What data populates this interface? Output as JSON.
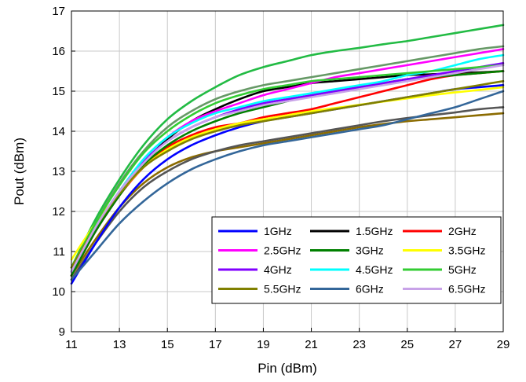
{
  "chart_data": {
    "type": "line",
    "xlabel": "Pin (dBm)",
    "ylabel": "Pout (dBm)",
    "xlim": [
      11,
      29
    ],
    "ylim": [
      9,
      17
    ],
    "xticks": [
      11,
      13,
      15,
      17,
      19,
      21,
      23,
      25,
      27,
      29
    ],
    "yticks": [
      9,
      10,
      11,
      12,
      13,
      14,
      15,
      16,
      17
    ],
    "grid": true,
    "legend_position": "bottom-right",
    "x": [
      11,
      12,
      13,
      14,
      15,
      16,
      17,
      18,
      19,
      20,
      21,
      22,
      23,
      24,
      25,
      26,
      27,
      28,
      29
    ],
    "series": [
      {
        "name": "1GHz",
        "color": "#0000ff",
        "values": [
          10.2,
          11.2,
          12.1,
          12.8,
          13.3,
          13.65,
          13.9,
          14.1,
          14.25,
          14.35,
          14.45,
          14.55,
          14.65,
          14.75,
          14.85,
          14.95,
          15.05,
          15.1,
          15.15
        ]
      },
      {
        "name": "1.5GHz",
        "color": "#000000",
        "values": [
          10.4,
          11.5,
          12.4,
          13.2,
          13.8,
          14.25,
          14.55,
          14.8,
          15.0,
          15.1,
          15.2,
          15.25,
          15.3,
          15.35,
          15.4,
          15.42,
          15.45,
          15.47,
          15.5
        ]
      },
      {
        "name": "2GHz",
        "color": "#ff0000",
        "values": [
          10.4,
          11.5,
          12.4,
          13.1,
          13.6,
          13.9,
          14.1,
          14.2,
          14.35,
          14.45,
          14.55,
          14.7,
          14.85,
          15.0,
          15.15,
          15.3,
          15.4,
          15.45,
          15.5
        ]
      },
      {
        "name": "2.5GHz",
        "color": "#ff00ff",
        "values": [
          10.5,
          11.6,
          12.5,
          13.3,
          13.85,
          14.25,
          14.5,
          14.7,
          14.9,
          15.05,
          15.2,
          15.35,
          15.45,
          15.55,
          15.65,
          15.75,
          15.85,
          15.95,
          16.05
        ]
      },
      {
        "name": "3GHz",
        "color": "#008000",
        "values": [
          10.4,
          11.5,
          12.4,
          13.15,
          13.65,
          14.0,
          14.25,
          14.45,
          14.6,
          14.75,
          14.9,
          15.0,
          15.1,
          15.2,
          15.3,
          15.35,
          15.4,
          15.45,
          15.5
        ]
      },
      {
        "name": "3.5GHz",
        "color": "#ffff00",
        "values": [
          10.8,
          11.7,
          12.45,
          13.1,
          13.55,
          13.85,
          14.05,
          14.2,
          14.3,
          14.4,
          14.5,
          14.58,
          14.66,
          14.74,
          14.82,
          14.9,
          14.97,
          15.03,
          15.1
        ]
      },
      {
        "name": "4GHz",
        "color": "#8000ff",
        "values": [
          10.5,
          11.6,
          12.5,
          13.25,
          13.75,
          14.1,
          14.35,
          14.55,
          14.7,
          14.8,
          14.9,
          15.0,
          15.1,
          15.2,
          15.3,
          15.4,
          15.5,
          15.6,
          15.7
        ]
      },
      {
        "name": "4.5GHz",
        "color": "#00ffff",
        "values": [
          10.5,
          11.6,
          12.5,
          13.3,
          13.85,
          14.2,
          14.45,
          14.6,
          14.75,
          14.85,
          14.95,
          15.05,
          15.15,
          15.25,
          15.4,
          15.5,
          15.65,
          15.8,
          15.9
        ]
      },
      {
        "name": "5GHz",
        "color": "#33cc33",
        "values": [
          10.6,
          11.7,
          12.65,
          13.45,
          14.0,
          14.4,
          14.7,
          14.9,
          15.05,
          15.15,
          15.25,
          15.3,
          15.35,
          15.4,
          15.45,
          15.5,
          15.55,
          15.6,
          15.65
        ]
      },
      {
        "name": "5.5GHz",
        "color": "#808000",
        "values": [
          10.6,
          11.6,
          12.45,
          13.1,
          13.5,
          13.8,
          14.0,
          14.15,
          14.25,
          14.35,
          14.45,
          14.55,
          14.65,
          14.75,
          14.85,
          14.95,
          15.05,
          15.15,
          15.25
        ]
      },
      {
        "name": "6GHz",
        "color": "#336699",
        "values": [
          10.3,
          11.0,
          11.7,
          12.25,
          12.7,
          13.05,
          13.3,
          13.5,
          13.65,
          13.75,
          13.85,
          13.95,
          14.05,
          14.15,
          14.3,
          14.45,
          14.6,
          14.8,
          15.0
        ]
      },
      {
        "name": "6.5GHz",
        "color": "#c8a2e8",
        "values": [
          10.5,
          11.6,
          12.5,
          13.2,
          13.75,
          14.1,
          14.35,
          14.5,
          14.65,
          14.75,
          14.85,
          14.95,
          15.05,
          15.15,
          15.25,
          15.35,
          15.45,
          15.55,
          15.65
        ]
      }
    ],
    "extra_series_unlabeled": [
      {
        "color": "#22bb44",
        "values": [
          10.6,
          11.8,
          12.8,
          13.65,
          14.3,
          14.75,
          15.1,
          15.4,
          15.6,
          15.75,
          15.9,
          16.0,
          16.08,
          16.17,
          16.25,
          16.35,
          16.45,
          16.55,
          16.65
        ]
      },
      {
        "color": "#669966",
        "values": [
          10.5,
          11.7,
          12.7,
          13.5,
          14.1,
          14.5,
          14.8,
          15.0,
          15.15,
          15.25,
          15.35,
          15.45,
          15.55,
          15.65,
          15.75,
          15.85,
          15.95,
          16.05,
          16.12
        ]
      },
      {
        "color": "#8b6b00",
        "values": [
          10.4,
          11.3,
          12.1,
          12.7,
          13.1,
          13.35,
          13.5,
          13.6,
          13.7,
          13.8,
          13.9,
          14.0,
          14.1,
          14.18,
          14.25,
          14.3,
          14.35,
          14.4,
          14.45
        ]
      },
      {
        "color": "#555555",
        "values": [
          10.3,
          11.2,
          12.0,
          12.6,
          13.0,
          13.3,
          13.5,
          13.65,
          13.75,
          13.85,
          13.95,
          14.05,
          14.15,
          14.25,
          14.33,
          14.4,
          14.47,
          14.55,
          14.6
        ]
      }
    ]
  }
}
